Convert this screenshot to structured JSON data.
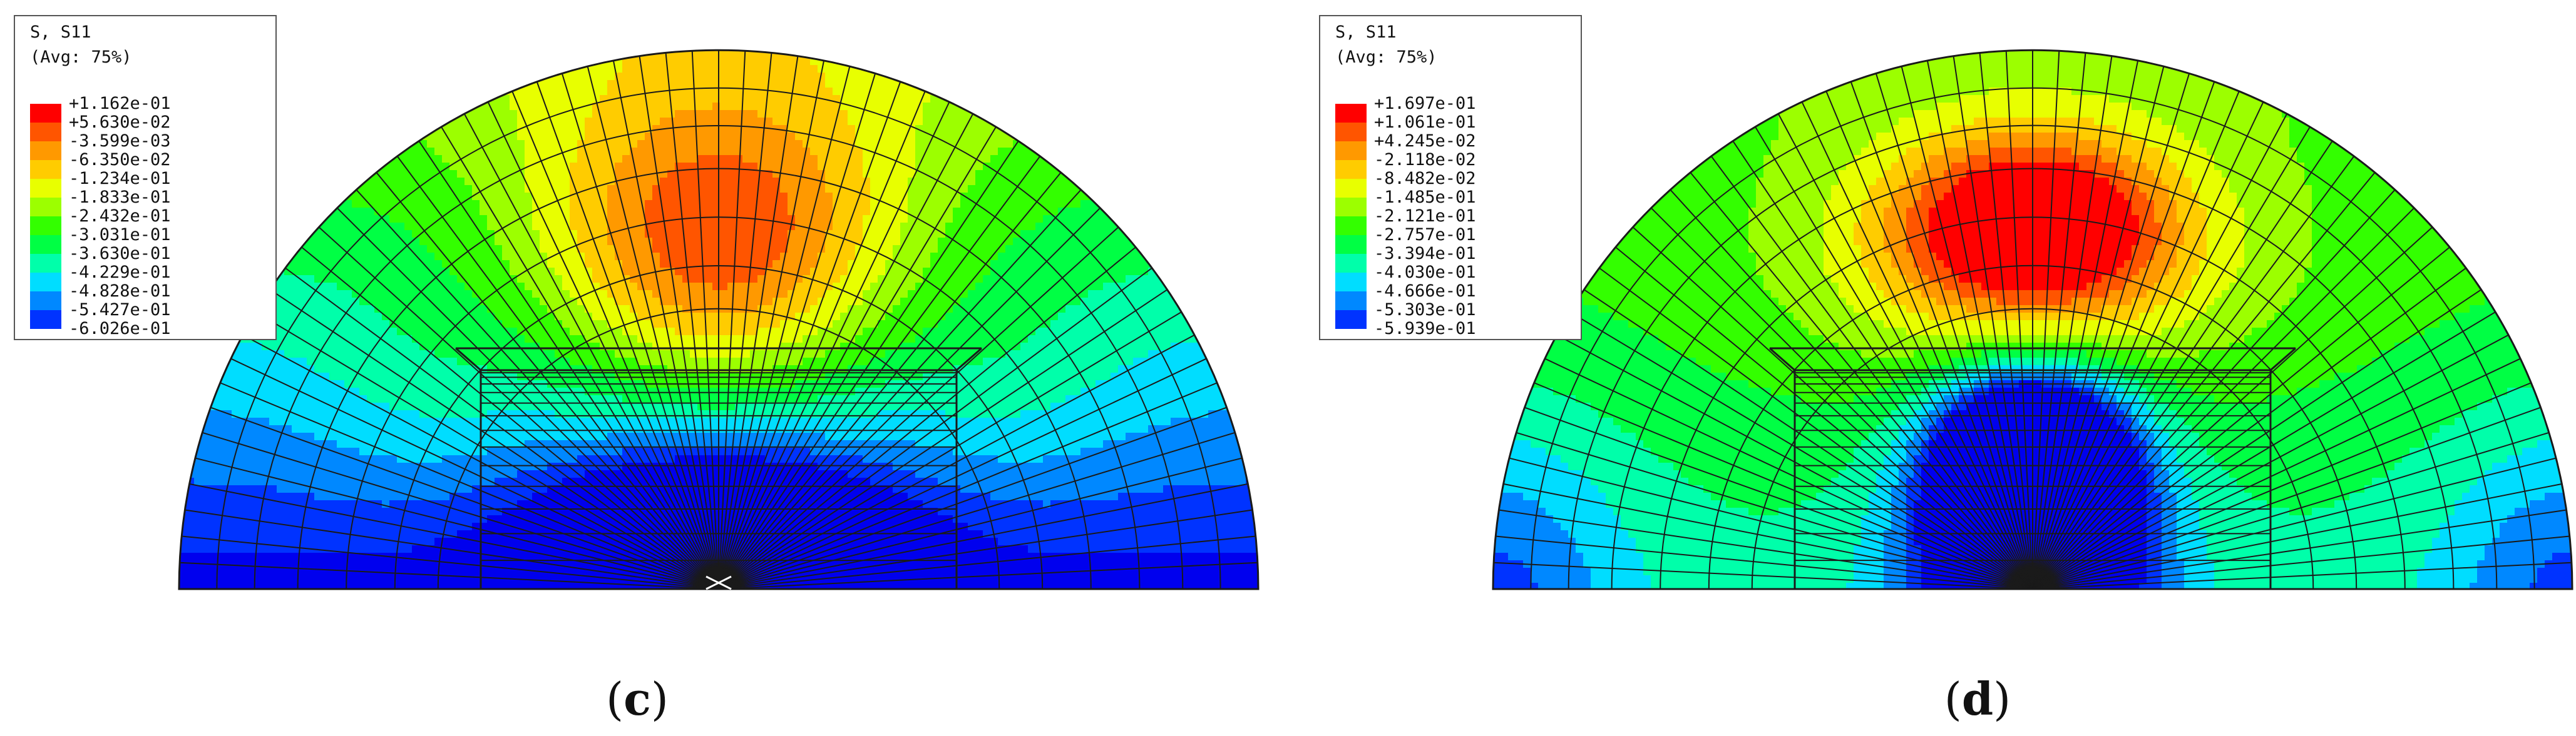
{
  "panels": [
    {
      "id": "c",
      "caption": "c",
      "legend": {
        "title": "S, S11",
        "subtitle": "(Avg: 75%)",
        "values": [
          "+1.162e-01",
          "+5.630e-02",
          "-3.599e-03",
          "-6.350e-02",
          "-1.234e-01",
          "-1.833e-01",
          "-2.432e-01",
          "-3.031e-01",
          "-3.630e-01",
          "-4.229e-01",
          "-4.828e-01",
          "-5.427e-01",
          "-6.026e-01"
        ]
      }
    },
    {
      "id": "d",
      "caption": "d",
      "legend": {
        "title": "S, S11",
        "subtitle": "(Avg: 75%)",
        "values": [
          "+1.697e-01",
          "+1.061e-01",
          "+4.245e-02",
          "-2.118e-02",
          "-8.482e-02",
          "-1.485e-01",
          "-2.121e-01",
          "-2.757e-01",
          "-3.394e-01",
          "-4.030e-01",
          "-4.666e-01",
          "-5.303e-01",
          "-5.939e-01"
        ]
      }
    }
  ],
  "colors": {
    "contour_bands": [
      "#ff0000",
      "#ff5500",
      "#ff9900",
      "#ffcc00",
      "#e8ff00",
      "#9cff00",
      "#33ff00",
      "#00ff44",
      "#00ffaa",
      "#00ddff",
      "#0088ff",
      "#0033ff",
      "#0000ee"
    ],
    "mesh": "#1a1a1a",
    "legend_border": "#555555"
  }
}
